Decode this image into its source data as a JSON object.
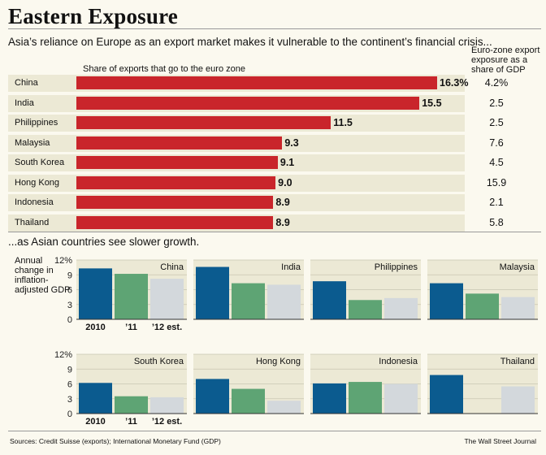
{
  "title": "Eastern Exposure",
  "subtitle_top": "Asia’s reliance on Europe as an export market makes it vulnerable to the continent’s financial crisis...",
  "subtitle_bottom": "...as Asian countries see slower growth.",
  "source": "Sources: Credit Suisse (exports); International Monetary Fund (GDP)",
  "credit": "The Wall Street Journal",
  "colors": {
    "bar_red": "#c9252b",
    "s2010": "#0b5b8f",
    "s2011": "#5ea474",
    "s2012": "#d3d8dc",
    "panel_bg": "#ece9d5"
  },
  "chart_data": [
    {
      "type": "bar",
      "orientation": "horizontal",
      "xlabel": "Share of exports that go to the euro zone",
      "categories": [
        "China",
        "India",
        "Philippines",
        "Malaysia",
        "South Korea",
        "Hong Kong",
        "Indonesia",
        "Thailand"
      ],
      "values": [
        16.3,
        15.5,
        11.5,
        9.3,
        9.1,
        9.0,
        8.9,
        8.9
      ],
      "value_labels": [
        "16.3%",
        "15.5",
        "11.5",
        "9.3",
        "9.1",
        "9.0",
        "8.9",
        "8.9"
      ],
      "xlim": [
        0,
        16.3
      ],
      "side_column": {
        "title": "Euro-zone export exposure as a share of GDP",
        "labels": [
          "4.2%",
          "2.5",
          "2.5",
          "7.6",
          "4.5",
          "15.9",
          "2.1",
          "5.8"
        ],
        "values": [
          4.2,
          2.5,
          2.5,
          7.6,
          4.5,
          15.9,
          2.1,
          5.8
        ]
      }
    },
    {
      "type": "bar",
      "ylabel": "Annual change in inflation-adjusted GDP",
      "yticks": [
        "12%",
        "9",
        "6",
        "3",
        "0"
      ],
      "ylim": [
        0,
        12
      ],
      "grid": true,
      "series_labels": [
        "2010",
        "’11",
        "’12 est."
      ],
      "panels": [
        {
          "name": "China",
          "values": [
            10.3,
            9.2,
            8.2
          ]
        },
        {
          "name": "India",
          "values": [
            10.6,
            7.3,
            7.0
          ]
        },
        {
          "name": "Philippines",
          "values": [
            7.7,
            3.9,
            4.3
          ]
        },
        {
          "name": "Malaysia",
          "values": [
            7.3,
            5.2,
            4.5
          ]
        },
        {
          "name": "South Korea",
          "values": [
            6.2,
            3.5,
            3.3
          ]
        },
        {
          "name": "Hong Kong",
          "values": [
            7.0,
            5.0,
            2.6
          ]
        },
        {
          "name": "Indonesia",
          "values": [
            6.1,
            6.4,
            6.0
          ]
        },
        {
          "name": "Thailand",
          "values": [
            7.8,
            0,
            5.5
          ]
        }
      ]
    }
  ]
}
